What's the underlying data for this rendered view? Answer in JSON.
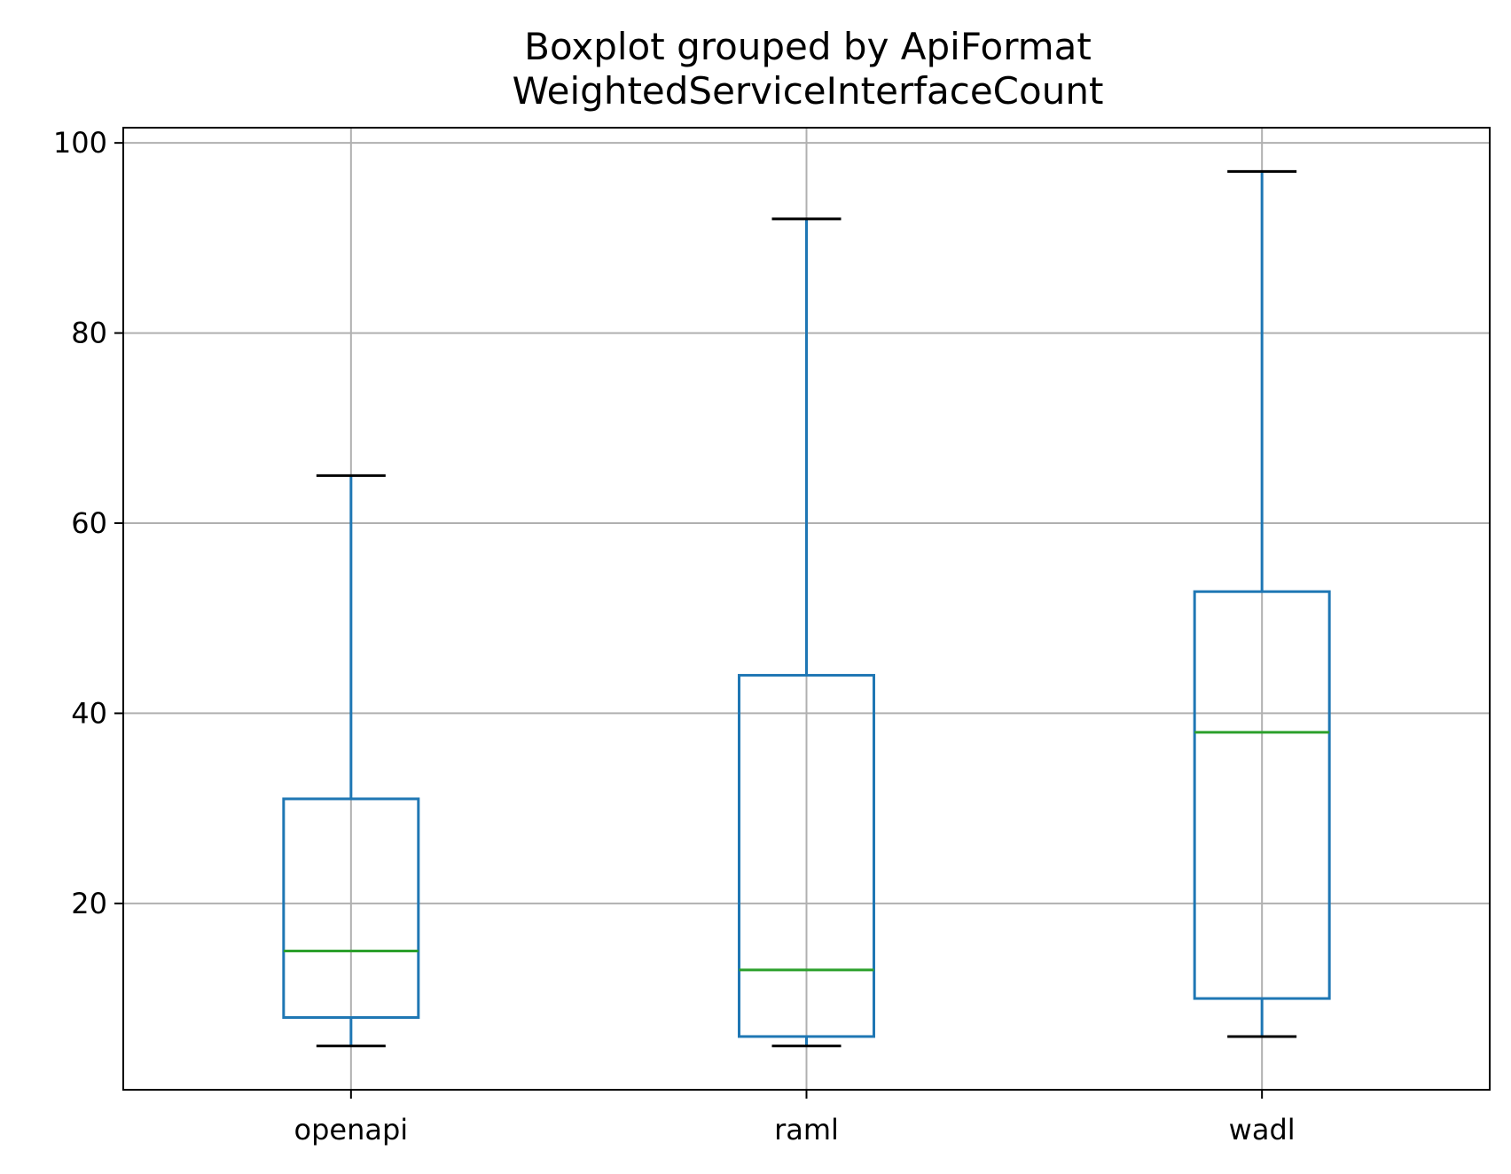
{
  "chart_data": {
    "type": "boxplot",
    "title": "Boxplot grouped by ApiFormat",
    "subtitle": "WeightedServiceInterfaceCount",
    "xlabel": "",
    "ylabel": "",
    "categories": [
      "openapi",
      "raml",
      "wadl"
    ],
    "boxes": [
      {
        "category": "openapi",
        "whisker_low": 5,
        "q1": 8,
        "median": 15,
        "q3": 31,
        "whisker_high": 65
      },
      {
        "category": "raml",
        "whisker_low": 5,
        "q1": 6,
        "median": 13,
        "q3": 44,
        "whisker_high": 92
      },
      {
        "category": "wadl",
        "whisker_low": 6,
        "q1": 10,
        "median": 38,
        "q3": 52.8,
        "whisker_high": 97
      }
    ],
    "ylim": [
      0.4,
      101.6
    ],
    "yticks": [
      20,
      40,
      60,
      80,
      100
    ],
    "ytick_labels": [
      "20",
      "40",
      "60",
      "80",
      "100"
    ],
    "grid": true,
    "colors": {
      "box": "#1f77b4",
      "median": "#2ca02c",
      "cap": "#000000",
      "grid": "#b0b0b0"
    }
  }
}
